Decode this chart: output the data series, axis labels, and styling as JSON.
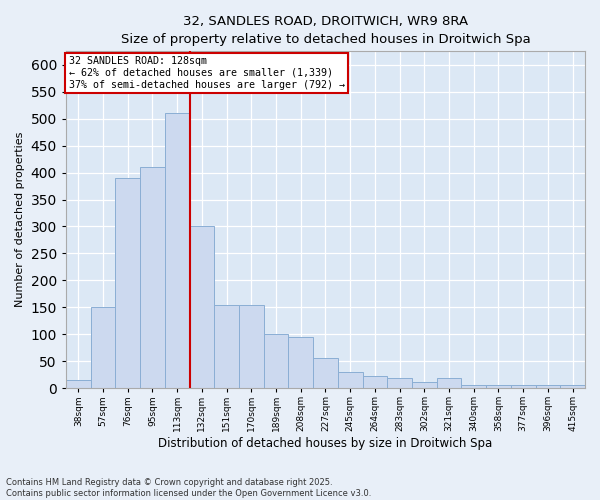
{
  "title_line1": "32, SANDLES ROAD, DROITWICH, WR9 8RA",
  "title_line2": "Size of property relative to detached houses in Droitwich Spa",
  "xlabel": "Distribution of detached houses by size in Droitwich Spa",
  "ylabel": "Number of detached properties",
  "bin_labels": [
    "38sqm",
    "57sqm",
    "76sqm",
    "95sqm",
    "113sqm",
    "132sqm",
    "151sqm",
    "170sqm",
    "189sqm",
    "208sqm",
    "227sqm",
    "245sqm",
    "264sqm",
    "283sqm",
    "302sqm",
    "321sqm",
    "340sqm",
    "358sqm",
    "377sqm",
    "396sqm",
    "415sqm"
  ],
  "bar_heights": [
    15,
    150,
    390,
    410,
    510,
    300,
    155,
    155,
    100,
    95,
    55,
    30,
    22,
    18,
    12,
    18,
    5,
    5,
    5,
    5,
    5
  ],
  "bar_color": "#ccd9ef",
  "bar_edge_color": "#8aaed4",
  "annotation_line1": "32 SANDLES ROAD: 128sqm",
  "annotation_line2": "← 62% of detached houses are smaller (1,339)",
  "annotation_line3": "37% of semi-detached houses are larger (792) →",
  "annotation_box_color": "#ffffff",
  "annotation_box_edge": "#cc0000",
  "vline_color": "#cc0000",
  "vline_x": 4.5,
  "ylim": [
    0,
    625
  ],
  "yticks": [
    0,
    50,
    100,
    150,
    200,
    250,
    300,
    350,
    400,
    450,
    500,
    550,
    600
  ],
  "bg_color": "#dce8f5",
  "fig_bg_color": "#e8eff8",
  "footnote1": "Contains HM Land Registry data © Crown copyright and database right 2025.",
  "footnote2": "Contains public sector information licensed under the Open Government Licence v3.0."
}
